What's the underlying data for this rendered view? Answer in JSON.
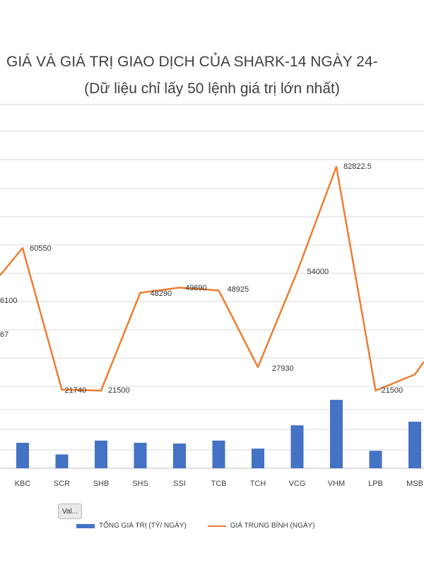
{
  "title": "GIÁ VÀ GIÁ TRỊ GIAO DỊCH CỦA SHARK-14 NGÀY 24-",
  "subtitle": "(Dữ liệu chỉ lấy 50 lệnh giá trị lớn nhất)",
  "filter_button": "Val...",
  "colors": {
    "bar": "#4472c4",
    "line": "#ed7d31",
    "grid": "#d9d9d9"
  },
  "chart_data": {
    "type": "bar",
    "categories": [
      "KBC",
      "SCR",
      "SHB",
      "SHS",
      "SSI",
      "TCB",
      "TCH",
      "VCG",
      "VHM",
      "LPB",
      "MSB"
    ],
    "series": [
      {
        "name": "TỔNG GIÁ TRỊ (TỶ/ NGÀY)",
        "type": "bar",
        "values": [
          35,
          19,
          38,
          35,
          34,
          38,
          27,
          59,
          94,
          24,
          64
        ]
      },
      {
        "name": "GIÁ TRUNG BÌNH (NGÀY)",
        "type": "line",
        "values": [
          60550,
          21740,
          21500,
          48290,
          49690,
          48925,
          27930,
          54000,
          82822.5,
          21500,
          25900
        ]
      }
    ],
    "line_left_partial": {
      "visible_labels": [
        "6100",
        "67"
      ]
    },
    "data_labels": [
      "60550",
      "21740",
      "21500",
      "48290",
      "49690",
      "48925",
      "27930",
      "54000",
      "82822.5",
      "21500",
      "6100",
      "67"
    ],
    "grid": true,
    "legend_position": "bottom"
  }
}
